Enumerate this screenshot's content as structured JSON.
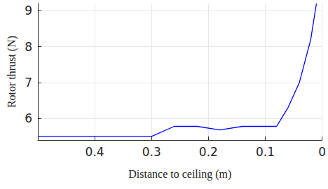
{
  "chart_data": {
    "type": "line",
    "x_label": "Distance to ceiling (m)",
    "y_label": "Rotor thrust (N)",
    "x": [
      0.5,
      0.3,
      0.26,
      0.22,
      0.18,
      0.14,
      0.1,
      0.08,
      0.06,
      0.04,
      0.02,
      0.01
    ],
    "values": [
      5.5,
      5.5,
      5.78,
      5.78,
      5.68,
      5.78,
      5.78,
      5.78,
      6.3,
      7.0,
      8.2,
      9.2
    ],
    "color": "#0000ff",
    "xlim": [
      0.5,
      0
    ],
    "xticks": [
      0.4,
      0.3,
      0.2,
      0.1,
      0
    ],
    "ylim": [
      5.4,
      9.2
    ],
    "yticks": [
      6,
      7,
      8,
      9
    ],
    "grid": true,
    "line_style": "solid",
    "marker": "none"
  }
}
